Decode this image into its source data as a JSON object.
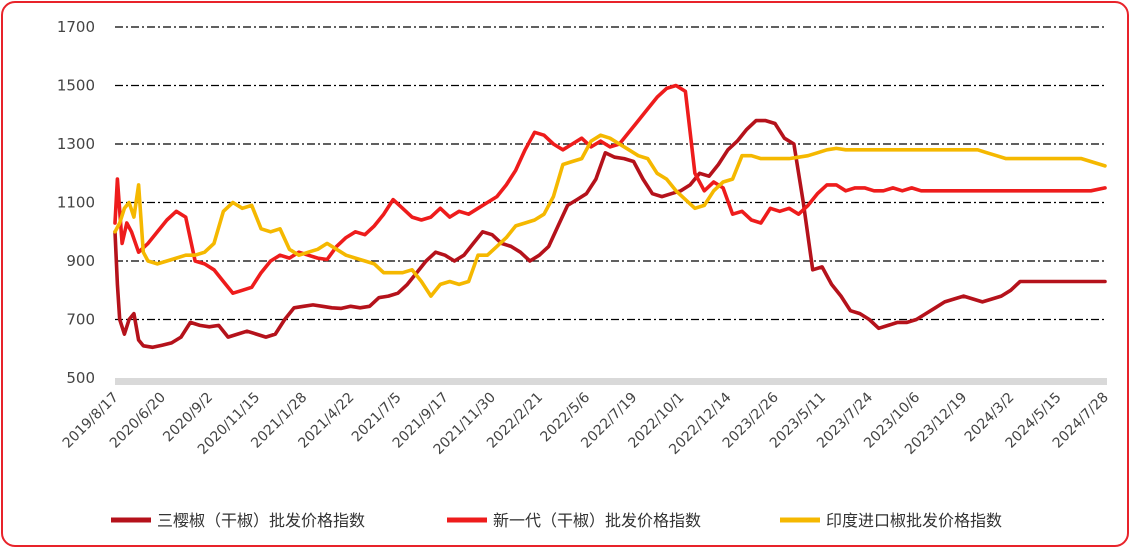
{
  "chart_data": {
    "type": "line",
    "ylim": [
      500,
      1700
    ],
    "yticks": [
      500,
      700,
      900,
      1100,
      1300,
      1500,
      1700
    ],
    "grid": true,
    "legend_position": "bottom",
    "x_tick_labels": [
      "2019/8/17",
      "2020/6/20",
      "2020/9/2",
      "2020/11/15",
      "2021/1/28",
      "2021/4/22",
      "2021/7/5",
      "2021/9/17",
      "2021/11/30",
      "2022/2/21",
      "2022/5/6",
      "2022/7/19",
      "2022/10/1",
      "2022/12/14",
      "2023/2/26",
      "2023/5/11",
      "2023/7/24",
      "2023/10/6",
      "2023/12/19",
      "2024/3/2",
      "2024/5/15",
      "2024/7/28"
    ],
    "series": [
      {
        "name": "三樱椒（干椒）批发价格指数",
        "color": "#b5121b",
        "x": [
          0,
          0.05,
          0.1,
          0.2,
          0.3,
          0.4,
          0.5,
          0.6,
          0.8,
          1.0,
          1.2,
          1.4,
          1.6,
          1.8,
          2.0,
          2.2,
          2.4,
          2.6,
          2.8,
          3.0,
          3.2,
          3.4,
          3.6,
          3.8,
          4.0,
          4.2,
          4.4,
          4.6,
          4.8,
          5.0,
          5.2,
          5.4,
          5.6,
          5.8,
          6.0,
          6.2,
          6.4,
          6.6,
          6.8,
          7.0,
          7.2,
          7.4,
          7.6,
          7.8,
          8.0,
          8.2,
          8.4,
          8.6,
          8.8,
          9.0,
          9.2,
          9.4,
          9.6,
          9.8,
          10.0,
          10.2,
          10.4,
          10.6,
          10.8,
          11.0,
          11.2,
          11.4,
          11.6,
          11.8,
          12.0,
          12.2,
          12.4,
          12.6,
          12.8,
          13.0,
          13.2,
          13.4,
          13.6,
          13.8,
          14.0,
          14.2,
          14.4,
          14.6,
          14.8,
          15.0,
          15.2,
          15.4,
          15.6,
          15.8,
          16.0,
          16.2,
          16.4,
          16.6,
          16.8,
          17.0,
          17.2,
          17.4,
          17.6,
          17.8,
          18.0,
          18.2,
          18.4,
          18.6,
          18.8,
          19.0,
          19.2,
          19.4,
          19.6,
          19.8,
          20.0,
          20.2,
          20.4,
          20.6,
          20.8,
          21.0
        ],
        "values": [
          1000,
          820,
          700,
          650,
          700,
          720,
          630,
          610,
          605,
          612,
          620,
          640,
          690,
          680,
          675,
          680,
          640,
          650,
          660,
          650,
          640,
          650,
          700,
          740,
          745,
          750,
          745,
          740,
          738,
          745,
          740,
          745,
          775,
          780,
          790,
          820,
          860,
          900,
          930,
          920,
          900,
          920,
          960,
          1000,
          990,
          960,
          950,
          930,
          900,
          920,
          950,
          1020,
          1090,
          1110,
          1130,
          1180,
          1270,
          1255,
          1250,
          1240,
          1180,
          1130,
          1120,
          1130,
          1140,
          1160,
          1200,
          1190,
          1230,
          1280,
          1310,
          1350,
          1380,
          1380,
          1370,
          1320,
          1300,
          1100,
          870,
          880,
          820,
          780,
          730,
          720,
          700,
          670,
          680,
          690,
          690,
          700,
          720,
          740,
          760,
          770,
          780,
          770,
          760,
          770,
          780,
          800,
          830,
          830,
          830,
          830,
          830,
          830,
          830,
          830,
          830,
          830
        ],
        "x_end": 21.0
      },
      {
        "name": "新一代（干椒）批发价格指数",
        "color": "#ee1c1c",
        "x": [
          0,
          0.05,
          0.15,
          0.25,
          0.35,
          0.5,
          0.7,
          0.9,
          1.1,
          1.3,
          1.5,
          1.7,
          1.9,
          2.1,
          2.3,
          2.5,
          2.7,
          2.9,
          3.1,
          3.3,
          3.5,
          3.7,
          3.9,
          4.1,
          4.3,
          4.5,
          4.7,
          4.9,
          5.1,
          5.3,
          5.5,
          5.7,
          5.9,
          6.1,
          6.3,
          6.5,
          6.7,
          6.9,
          7.1,
          7.3,
          7.5,
          7.7,
          7.9,
          8.1,
          8.3,
          8.5,
          8.7,
          8.9,
          9.1,
          9.3,
          9.5,
          9.7,
          9.9,
          10.1,
          10.3,
          10.5,
          10.7,
          10.9,
          11.1,
          11.3,
          11.5,
          11.7,
          11.9,
          12.1,
          12.3,
          12.5,
          12.7,
          12.9,
          13.1,
          13.3,
          13.5,
          13.7,
          13.9,
          14.1,
          14.3,
          14.5,
          14.7,
          14.9,
          15.1,
          15.3,
          15.5,
          15.7,
          15.9,
          16.1,
          16.3,
          16.5,
          16.7,
          16.9,
          17.1,
          17.3,
          17.5,
          17.7,
          17.9,
          18.1,
          18.3,
          18.5,
          18.7,
          18.9,
          19.1,
          19.3,
          19.5,
          19.7,
          19.9,
          20.1,
          20.3,
          20.5,
          20.7,
          21.0
        ],
        "values": [
          1030,
          1180,
          960,
          1030,
          1000,
          930,
          960,
          1000,
          1040,
          1070,
          1050,
          900,
          890,
          870,
          830,
          790,
          800,
          810,
          860,
          900,
          920,
          910,
          930,
          920,
          910,
          905,
          950,
          980,
          1000,
          990,
          1020,
          1060,
          1110,
          1080,
          1050,
          1040,
          1050,
          1080,
          1050,
          1070,
          1060,
          1080,
          1100,
          1120,
          1160,
          1210,
          1280,
          1340,
          1330,
          1300,
          1280,
          1300,
          1320,
          1290,
          1310,
          1290,
          1300,
          1340,
          1380,
          1420,
          1460,
          1490,
          1500,
          1480,
          1200,
          1140,
          1170,
          1150,
          1060,
          1070,
          1040,
          1030,
          1080,
          1070,
          1080,
          1060,
          1090,
          1130,
          1160,
          1160,
          1140,
          1150,
          1150,
          1140,
          1140,
          1150,
          1140,
          1150,
          1140,
          1140,
          1140,
          1140,
          1140,
          1140,
          1140,
          1140,
          1140,
          1140,
          1140,
          1140,
          1140,
          1140,
          1140,
          1140,
          1140,
          1140,
          1140,
          1150
        ]
      },
      {
        "name": "印度进口椒批发价格指数",
        "color": "#f5b800",
        "x": [
          0,
          0.1,
          0.2,
          0.3,
          0.4,
          0.5,
          0.6,
          0.7,
          0.9,
          1.1,
          1.3,
          1.5,
          1.7,
          1.9,
          2.1,
          2.3,
          2.5,
          2.7,
          2.9,
          3.1,
          3.3,
          3.5,
          3.7,
          3.9,
          4.1,
          4.3,
          4.5,
          4.7,
          4.9,
          5.1,
          5.3,
          5.5,
          5.7,
          5.9,
          6.1,
          6.3,
          6.5,
          6.7,
          6.9,
          7.1,
          7.3,
          7.5,
          7.7,
          7.9,
          8.1,
          8.3,
          8.5,
          8.7,
          8.9,
          9.1,
          9.3,
          9.5,
          9.7,
          9.9,
          10.1,
          10.3,
          10.5,
          10.7,
          10.9,
          11.1,
          11.3,
          11.5,
          11.7,
          11.9,
          12.1,
          12.3,
          12.5,
          12.7,
          12.9,
          13.1,
          13.3,
          13.5,
          13.7,
          13.9,
          14.1,
          14.3,
          14.5,
          14.7,
          14.9,
          15.1,
          15.3,
          15.5,
          15.7,
          15.9,
          16.1,
          16.3,
          16.5,
          16.7,
          16.9,
          17.1,
          17.3,
          17.5,
          17.7,
          17.9,
          18.1,
          18.3,
          18.5,
          18.7,
          18.9,
          19.1,
          19.3,
          19.5,
          19.7,
          19.9,
          20.1,
          20.3,
          20.5,
          21.0
        ],
        "values": [
          1000,
          1030,
          1080,
          1100,
          1050,
          1160,
          930,
          900,
          890,
          900,
          910,
          920,
          920,
          930,
          960,
          1070,
          1100,
          1080,
          1090,
          1010,
          1000,
          1010,
          940,
          920,
          930,
          940,
          960,
          940,
          920,
          910,
          900,
          890,
          860,
          860,
          860,
          870,
          830,
          780,
          820,
          830,
          820,
          830,
          920,
          920,
          950,
          980,
          1020,
          1030,
          1040,
          1060,
          1120,
          1230,
          1240,
          1250,
          1310,
          1330,
          1320,
          1300,
          1280,
          1260,
          1250,
          1200,
          1180,
          1140,
          1110,
          1080,
          1090,
          1140,
          1170,
          1180,
          1260,
          1260,
          1250,
          1250,
          1250,
          1250,
          1255,
          1260,
          1270,
          1280,
          1285,
          1280,
          1280,
          1280,
          1280,
          1280,
          1280,
          1280,
          1280,
          1280,
          1280,
          1280,
          1280,
          1280,
          1280,
          1280,
          1270,
          1260,
          1250,
          1250,
          1250,
          1250,
          1250,
          1250,
          1250,
          1250,
          1250,
          1225
        ]
      }
    ]
  }
}
